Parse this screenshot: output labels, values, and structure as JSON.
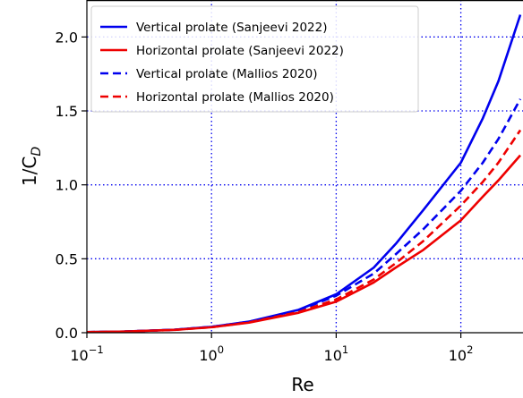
{
  "chart_data": {
    "type": "line",
    "xscale": "log",
    "xlim": [
      0.1,
      300
    ],
    "ylim": [
      0,
      2.25
    ],
    "xlabel": "Re",
    "ylabel_main": "1/C",
    "ylabel_sub": "D",
    "grid": true,
    "grid_color": "#0000ee",
    "grid_style": "dotted",
    "legend_position": "top-left",
    "x_ticks": [
      {
        "value": 0.1,
        "base": "10",
        "exp": "−1"
      },
      {
        "value": 1,
        "base": "10",
        "exp": "0"
      },
      {
        "value": 10,
        "base": "10",
        "exp": "1"
      },
      {
        "value": 100,
        "base": "10",
        "exp": "2"
      }
    ],
    "y_ticks": [
      {
        "value": 0.0,
        "label": "0.0"
      },
      {
        "value": 0.5,
        "label": "0.5"
      },
      {
        "value": 1.0,
        "label": "1.0"
      },
      {
        "value": 1.5,
        "label": "1.5"
      },
      {
        "value": 2.0,
        "label": "2.0"
      }
    ],
    "series": [
      {
        "name": "Vertical prolate (Sanjeevi 2022)",
        "color": "#0000ee",
        "dash": "solid",
        "points": [
          [
            0.1,
            0.004
          ],
          [
            0.2,
            0.008
          ],
          [
            0.5,
            0.02
          ],
          [
            1,
            0.04
          ],
          [
            2,
            0.075
          ],
          [
            5,
            0.155
          ],
          [
            10,
            0.26
          ],
          [
            20,
            0.44
          ],
          [
            30,
            0.6
          ],
          [
            50,
            0.83
          ],
          [
            100,
            1.15
          ],
          [
            150,
            1.45
          ],
          [
            200,
            1.7
          ],
          [
            300,
            2.15
          ]
        ]
      },
      {
        "name": "Horizontal prolate (Sanjeevi 2022)",
        "color": "#ee0000",
        "dash": "solid",
        "points": [
          [
            0.1,
            0.004
          ],
          [
            0.2,
            0.008
          ],
          [
            0.5,
            0.019
          ],
          [
            1,
            0.037
          ],
          [
            2,
            0.068
          ],
          [
            5,
            0.135
          ],
          [
            10,
            0.21
          ],
          [
            20,
            0.34
          ],
          [
            30,
            0.44
          ],
          [
            50,
            0.56
          ],
          [
            100,
            0.76
          ],
          [
            150,
            0.92
          ],
          [
            200,
            1.03
          ],
          [
            300,
            1.2
          ]
        ]
      },
      {
        "name": "Vertical prolate (Mallios 2020)",
        "color": "#0000ee",
        "dash": "dashed",
        "points": [
          [
            0.1,
            0.004
          ],
          [
            0.2,
            0.008
          ],
          [
            0.5,
            0.02
          ],
          [
            1,
            0.04
          ],
          [
            2,
            0.074
          ],
          [
            5,
            0.15
          ],
          [
            10,
            0.25
          ],
          [
            20,
            0.4
          ],
          [
            30,
            0.53
          ],
          [
            50,
            0.7
          ],
          [
            100,
            0.96
          ],
          [
            150,
            1.15
          ],
          [
            200,
            1.31
          ],
          [
            300,
            1.58
          ]
        ]
      },
      {
        "name": "Horizontal prolate (Mallios 2020)",
        "color": "#ee0000",
        "dash": "dashed",
        "points": [
          [
            0.1,
            0.004
          ],
          [
            0.2,
            0.008
          ],
          [
            0.5,
            0.019
          ],
          [
            1,
            0.037
          ],
          [
            2,
            0.07
          ],
          [
            5,
            0.14
          ],
          [
            10,
            0.225
          ],
          [
            20,
            0.36
          ],
          [
            30,
            0.47
          ],
          [
            50,
            0.62
          ],
          [
            100,
            0.86
          ],
          [
            150,
            1.02
          ],
          [
            200,
            1.15
          ],
          [
            300,
            1.37
          ]
        ]
      }
    ]
  }
}
